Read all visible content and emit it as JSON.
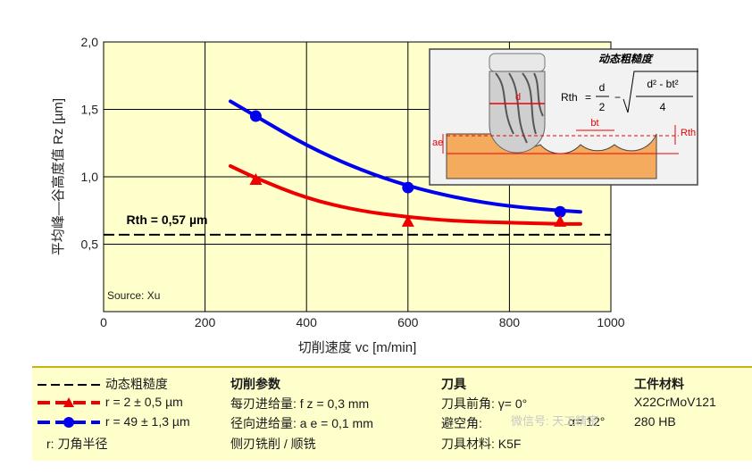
{
  "chart_data": {
    "type": "line",
    "ylabel": "平均峰—谷高度值 Rz [µm]",
    "xlabel": "切削速度 vc [m/min]",
    "xlim": [
      0,
      1000
    ],
    "ylim": [
      0,
      2.0
    ],
    "xticks": [
      "0",
      "200",
      "400",
      "600",
      "800",
      "1000"
    ],
    "yticks": [
      "0,5",
      "1,0",
      "1,5",
      "2,0"
    ],
    "grid": true,
    "series": [
      {
        "name": "r = 49 ± 1,3 µm",
        "color": "#0000ee",
        "marker": "circle",
        "curve_x": [
          250,
          300,
          400,
          500,
          600,
          700,
          800,
          900,
          940
        ],
        "curve_y": [
          1.56,
          1.45,
          1.23,
          1.06,
          0.93,
          0.84,
          0.78,
          0.75,
          0.74
        ],
        "points_x": [
          300,
          600,
          900
        ],
        "points_y": [
          1.45,
          0.92,
          0.74
        ]
      },
      {
        "name": "r = 2 ± 0,5 µm",
        "color": "#ee0000",
        "marker": "triangle",
        "curve_x": [
          250,
          300,
          400,
          500,
          600,
          700,
          800,
          900,
          940
        ],
        "curve_y": [
          1.08,
          0.99,
          0.84,
          0.75,
          0.7,
          0.67,
          0.66,
          0.65,
          0.65
        ],
        "points_x": [
          300,
          600,
          900
        ],
        "points_y": [
          0.98,
          0.67,
          0.67
        ]
      }
    ],
    "reference": {
      "label": "Rth = 0,57 µm",
      "y": 0.57,
      "color": "#000000"
    },
    "source": "Source: Xu"
  },
  "inset": {
    "title": "动态粗糙度",
    "formula_lhs": "Rth",
    "formula_num": "d",
    "formula_den": "2",
    "formula_root_num": "d² - bt²",
    "formula_root_den": "4",
    "label_d": "d",
    "label_bt": "bt",
    "label_ae": "ae",
    "label_rth": "Rth"
  },
  "legend": {
    "dyn_label": "动态粗糙度",
    "red_label": "r = 2 ± 0,5 µm",
    "blue_label": "r = 49 ± 1,3 µm",
    "r_note": "r: 刀角半径",
    "params_title": "切削参数",
    "p1": "每刃进给量:    f z = 0,3 mm",
    "p2": "径向进给量: a e = 0,1 mm",
    "p3": "侧刃铣削 / 顺铣",
    "tool_title": "刀具",
    "t1": "刀具前角:    γ= 0°",
    "t2": "避空角:",
    "t2b": "α= 12°",
    "t3": "刀具材料: K5F",
    "wp_title": "工件材料",
    "w1": "X22CrMoV121",
    "w2": "280 HB",
    "watermark": "微信号: 天工精密"
  },
  "colors": {
    "plot_bg": "#ffffcc",
    "blue": "#0000ee",
    "red": "#ee0000",
    "tool_orange": "#f0a050"
  }
}
